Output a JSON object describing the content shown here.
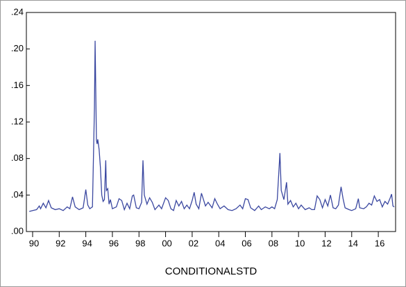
{
  "chart_data": {
    "type": "line",
    "series": [
      {
        "name": "CONDITIONALSTD",
        "color": "#3a47a0",
        "x": [
          1989.75,
          1990.0,
          1990.3,
          1990.5,
          1990.6,
          1990.8,
          1991.0,
          1991.2,
          1991.4,
          1991.7,
          1992.0,
          1992.3,
          1992.6,
          1992.8,
          1993.0,
          1993.2,
          1993.5,
          1993.8,
          1994.0,
          1994.15,
          1994.3,
          1994.5,
          1994.65,
          1994.7,
          1994.8,
          1994.85,
          1994.9,
          1995.0,
          1995.1,
          1995.2,
          1995.3,
          1995.4,
          1995.5,
          1995.55,
          1995.65,
          1995.75,
          1995.85,
          1996.0,
          1996.3,
          1996.5,
          1996.7,
          1996.9,
          1997.1,
          1997.3,
          1997.5,
          1997.6,
          1997.8,
          1998.0,
          1998.2,
          1998.3,
          1998.4,
          1998.6,
          1998.8,
          1999.0,
          1999.2,
          1999.5,
          1999.7,
          2000.0,
          2000.2,
          2000.4,
          2000.6,
          2000.8,
          2001.0,
          2001.2,
          2001.4,
          2001.6,
          2001.8,
          2002.0,
          2002.15,
          2002.3,
          2002.5,
          2002.7,
          2002.85,
          2003.0,
          2003.2,
          2003.5,
          2003.7,
          2003.9,
          2004.1,
          2004.4,
          2004.7,
          2005.0,
          2005.3,
          2005.6,
          2005.8,
          2006.0,
          2006.2,
          2006.4,
          2006.7,
          2007.0,
          2007.2,
          2007.5,
          2007.8,
          2008.0,
          2008.2,
          2008.4,
          2008.6,
          2008.7,
          2008.9,
          2009.1,
          2009.2,
          2009.4,
          2009.6,
          2009.8,
          2010.0,
          2010.2,
          2010.5,
          2010.8,
          2011.0,
          2011.2,
          2011.4,
          2011.6,
          2011.8,
          2012.0,
          2012.2,
          2012.4,
          2012.6,
          2012.8,
          2013.0,
          2013.2,
          2013.35,
          2013.5,
          2013.8,
          2014.0,
          2014.3,
          2014.5,
          2014.6,
          2014.9,
          2015.1,
          2015.3,
          2015.5,
          2015.7,
          2015.9,
          2016.1,
          2016.3,
          2016.5,
          2016.7,
          2016.9,
          2017.0,
          2017.1,
          2017.2
        ],
        "values": [
          0.022,
          0.023,
          0.024,
          0.028,
          0.025,
          0.031,
          0.026,
          0.034,
          0.026,
          0.024,
          0.025,
          0.023,
          0.027,
          0.025,
          0.038,
          0.027,
          0.024,
          0.026,
          0.046,
          0.029,
          0.025,
          0.027,
          0.136,
          0.209,
          0.1,
          0.096,
          0.101,
          0.09,
          0.07,
          0.04,
          0.033,
          0.035,
          0.078,
          0.045,
          0.047,
          0.03,
          0.035,
          0.025,
          0.027,
          0.036,
          0.034,
          0.024,
          0.031,
          0.025,
          0.039,
          0.04,
          0.026,
          0.025,
          0.032,
          0.078,
          0.04,
          0.03,
          0.037,
          0.032,
          0.024,
          0.029,
          0.025,
          0.037,
          0.034,
          0.025,
          0.023,
          0.034,
          0.028,
          0.033,
          0.025,
          0.029,
          0.025,
          0.034,
          0.043,
          0.03,
          0.025,
          0.042,
          0.035,
          0.028,
          0.032,
          0.026,
          0.036,
          0.03,
          0.025,
          0.028,
          0.024,
          0.023,
          0.025,
          0.029,
          0.025,
          0.036,
          0.035,
          0.026,
          0.023,
          0.028,
          0.024,
          0.027,
          0.025,
          0.027,
          0.025,
          0.035,
          0.086,
          0.045,
          0.035,
          0.054,
          0.03,
          0.034,
          0.027,
          0.031,
          0.025,
          0.029,
          0.024,
          0.026,
          0.024,
          0.024,
          0.039,
          0.035,
          0.026,
          0.035,
          0.028,
          0.04,
          0.026,
          0.025,
          0.029,
          0.049,
          0.036,
          0.026,
          0.024,
          0.023,
          0.025,
          0.036,
          0.026,
          0.025,
          0.027,
          0.031,
          0.029,
          0.039,
          0.033,
          0.035,
          0.027,
          0.033,
          0.03,
          0.037,
          0.041,
          0.028,
          0.027
        ]
      }
    ],
    "xlim": [
      1989.53,
      2017.3
    ],
    "xticks": [
      {
        "value": 1990,
        "label": "90"
      },
      {
        "value": 1992,
        "label": "92"
      },
      {
        "value": 1994,
        "label": "94"
      },
      {
        "value": 1996,
        "label": "96"
      },
      {
        "value": 1998,
        "label": "98"
      },
      {
        "value": 2000,
        "label": "00"
      },
      {
        "value": 2002,
        "label": "02"
      },
      {
        "value": 2004,
        "label": "04"
      },
      {
        "value": 2006,
        "label": "06"
      },
      {
        "value": 2008,
        "label": "08"
      },
      {
        "value": 2010,
        "label": "10"
      },
      {
        "value": 2012,
        "label": "12"
      },
      {
        "value": 2014,
        "label": "14"
      },
      {
        "value": 2016,
        "label": "16"
      }
    ],
    "ylim": [
      0,
      0.24
    ],
    "yticks": [
      {
        "value": 0,
        "label": ".00"
      },
      {
        "value": 0.04,
        "label": ".04"
      },
      {
        "value": 0.08,
        "label": ".08"
      },
      {
        "value": 0.12,
        "label": ".12"
      },
      {
        "value": 0.16,
        "label": ".16"
      },
      {
        "value": 0.2,
        "label": ".20"
      },
      {
        "value": 0.24,
        "label": ".24"
      }
    ]
  }
}
